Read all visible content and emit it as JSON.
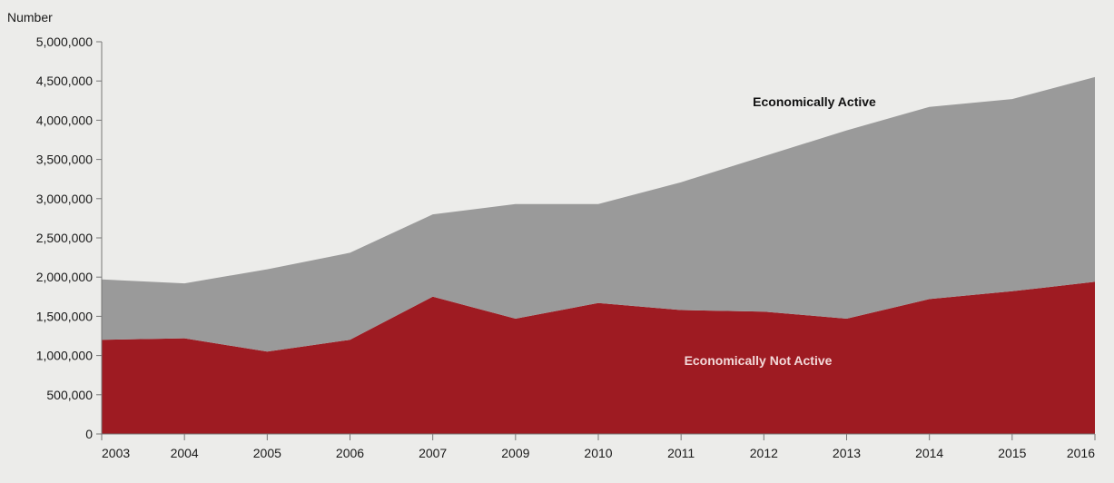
{
  "chart_data": {
    "type": "area",
    "stacked": true,
    "ylabel": "Number",
    "xlabel": "",
    "ylim": [
      0,
      5000000
    ],
    "yticks": [
      0,
      500000,
      1000000,
      1500000,
      2000000,
      2500000,
      3000000,
      3500000,
      4000000,
      4500000,
      5000000
    ],
    "ytick_labels": [
      "0",
      "500,000",
      "1,000,000",
      "1,500,000",
      "2,000,000",
      "2,500,000",
      "3,000,000",
      "3,500,000",
      "4,000,000",
      "4,500,000",
      "5,000,000"
    ],
    "categories": [
      "2003",
      "2004",
      "2005",
      "2006",
      "2007",
      "2009",
      "2010",
      "2011",
      "2012",
      "2013",
      "2014",
      "2015",
      "2016"
    ],
    "series": [
      {
        "name": "Economically Not Active",
        "color": "#9e1b22",
        "values": [
          1200000,
          1220000,
          1050000,
          1200000,
          1750000,
          1470000,
          1670000,
          1580000,
          1560000,
          1470000,
          1720000,
          1820000,
          1940000
        ]
      },
      {
        "name": "Economically Active",
        "color": "#9a9a9a",
        "values": [
          770000,
          700000,
          1050000,
          1110000,
          1050000,
          1460000,
          1260000,
          1630000,
          1980000,
          2400000,
          2450000,
          2450000,
          2610000
        ]
      }
    ],
    "grid": false,
    "legend": "inline"
  }
}
